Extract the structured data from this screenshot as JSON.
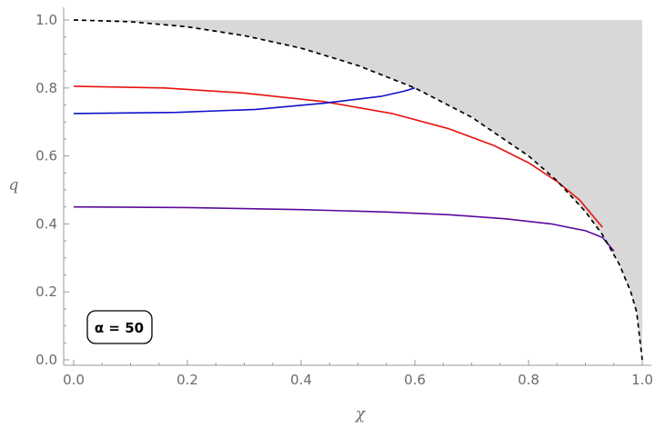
{
  "chart_data": {
    "type": "line",
    "xlabel": "χ",
    "ylabel": "q",
    "xlim": [
      0,
      1
    ],
    "ylim": [
      0,
      1
    ],
    "x_ticks": [
      0.0,
      0.2,
      0.4,
      0.6,
      0.8,
      1.0
    ],
    "x_tick_labels": [
      "0.0",
      "0.2",
      "0.4",
      "0.6",
      "0.8",
      "1.0"
    ],
    "y_ticks": [
      0.0,
      0.2,
      0.4,
      0.6,
      0.8,
      1.0
    ],
    "y_tick_labels": [
      "0.0",
      "0.2",
      "0.4",
      "0.6",
      "0.8",
      "1.0"
    ],
    "annotation": "α = 50",
    "grid": false,
    "colors": {
      "red": "#e8120c",
      "blue": "#1010cc",
      "purple": "#5a0a9c",
      "bound": "#000000",
      "excluded_region": "#d8d8d8",
      "axes": "#9a9a9a"
    },
    "series": [
      {
        "color": "red",
        "x": [
          0.0,
          0.16,
          0.3,
          0.44,
          0.56,
          0.66,
          0.74,
          0.8,
          0.85,
          0.89,
          0.91,
          0.93
        ],
        "y": [
          0.805,
          0.8,
          0.785,
          0.76,
          0.725,
          0.68,
          0.63,
          0.58,
          0.525,
          0.47,
          0.43,
          0.39
        ]
      },
      {
        "color": "blue",
        "x": [
          0.0,
          0.18,
          0.32,
          0.44,
          0.54,
          0.58,
          0.6
        ],
        "y": [
          0.725,
          0.728,
          0.737,
          0.755,
          0.775,
          0.79,
          0.8
        ]
      },
      {
        "color": "purple",
        "x": [
          0.0,
          0.2,
          0.4,
          0.55,
          0.66,
          0.76,
          0.84,
          0.9,
          0.93,
          0.95
        ],
        "y": [
          0.45,
          0.448,
          0.442,
          0.435,
          0.427,
          0.415,
          0.4,
          0.38,
          0.36,
          0.32
        ]
      },
      {
        "color": "bound",
        "style": "dashed",
        "x": [
          0.0,
          0.1,
          0.2,
          0.3,
          0.4,
          0.5,
          0.6,
          0.7,
          0.8,
          0.85,
          0.9,
          0.93,
          0.96,
          0.98,
          0.99,
          1.0
        ],
        "y": [
          1.0,
          0.995,
          0.98,
          0.954,
          0.917,
          0.866,
          0.8,
          0.714,
          0.6,
          0.527,
          0.436,
          0.368,
          0.28,
          0.199,
          0.141,
          0.0
        ]
      }
    ]
  }
}
